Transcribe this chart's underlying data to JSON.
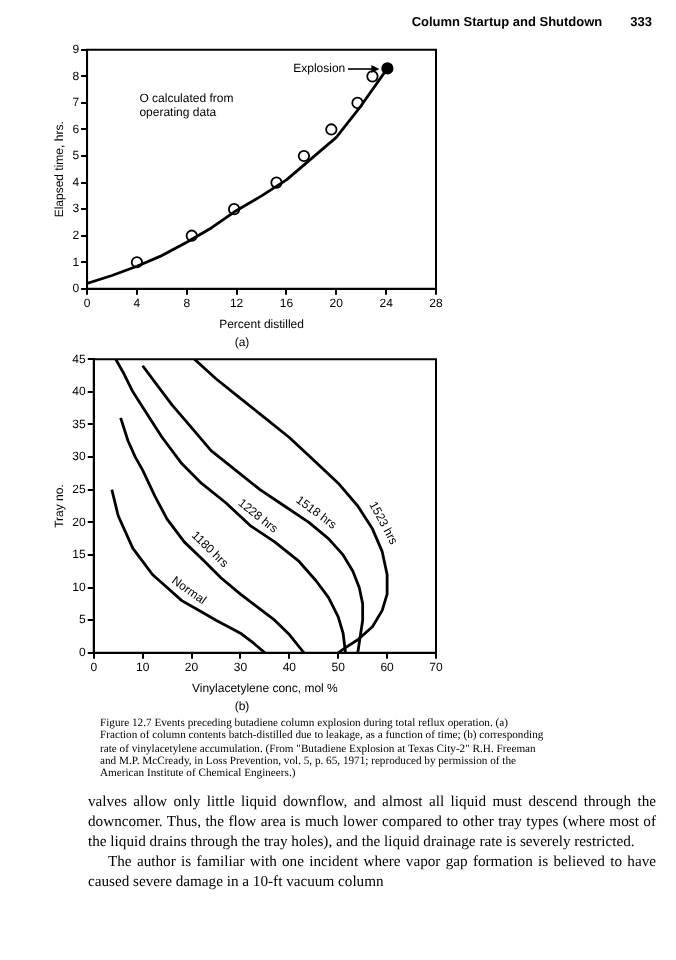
{
  "chart_data": [
    {
      "type": "line",
      "subtitle": "(a)",
      "xlabel": "Percent distilled",
      "ylabel": "Elapsed time, hrs.",
      "xlim": [
        0,
        28
      ],
      "xticks": [
        0,
        4,
        8,
        12,
        16,
        20,
        24,
        28
      ],
      "ylim": [
        0,
        9
      ],
      "yticks": [
        0,
        1,
        2,
        3,
        4,
        5,
        6,
        7,
        8,
        9
      ],
      "grid": false,
      "legend": false,
      "series": [
        {
          "type": "line",
          "color": "#000000",
          "marker": "none",
          "x": [
            0,
            2,
            4,
            6,
            8,
            10,
            12,
            14,
            16,
            18,
            20,
            22,
            24.1
          ],
          "values": [
            0.2,
            0.5,
            0.85,
            1.25,
            1.75,
            2.3,
            2.95,
            3.5,
            4.1,
            4.9,
            5.7,
            6.9,
            8.3
          ]
        },
        {
          "type": "scatter",
          "color": "#000000",
          "marker": "circle",
          "x": [
            4,
            8.4,
            11.8,
            15.2,
            17.4,
            19.6,
            21.7,
            22.9
          ],
          "values": [
            1,
            2,
            3,
            4,
            5,
            6,
            7,
            8
          ]
        },
        {
          "type": "scatter",
          "color": "#000000",
          "colors": [
            "#000000"
          ],
          "marker": "circle",
          "x": [
            24.1
          ],
          "values": [
            8.3
          ]
        }
      ],
      "annotations": [
        "Column Startup and Shutdown",
        "333",
        "O calculated from operating data",
        "Explosion"
      ]
    },
    {
      "type": "line",
      "subtitle": "(b)",
      "xlabel": "Vinylacetylene conc, mol %",
      "ylabel": "Tray no.",
      "xlim": [
        0,
        70
      ],
      "xticks": [
        0,
        10,
        20,
        30,
        40,
        50,
        60,
        70
      ],
      "ylim": [
        0,
        45
      ],
      "yticks": [
        0,
        5,
        10,
        15,
        20,
        25,
        30,
        35,
        40,
        45
      ],
      "grid": false,
      "legend": false,
      "series": [
        {
          "name": "Normal",
          "color": "#000000",
          "x": [
            3.7,
            5,
            6.5,
            8,
            10,
            12,
            15,
            18,
            22,
            25,
            28,
            30,
            32.5,
            35
          ],
          "values": [
            25,
            21,
            18.5,
            16,
            14,
            12,
            10,
            8,
            6.3,
            5,
            3.8,
            3,
            1.6,
            0
          ]
        },
        {
          "name": "1180 hrs",
          "color": "#000000",
          "x": [
            5.5,
            7,
            8.5,
            10,
            12.5,
            15,
            18.5,
            22,
            26,
            30,
            33.5,
            37,
            40,
            43
          ],
          "values": [
            36,
            32.5,
            30,
            28,
            24,
            20.5,
            17,
            14.5,
            11.5,
            9,
            7,
            5,
            2.8,
            0
          ]
        },
        {
          "name": "1228 hrs",
          "color": "#000000",
          "x": [
            4.5,
            6,
            8,
            11,
            14,
            18,
            22,
            27,
            32,
            37,
            42,
            45.5,
            48,
            50,
            51,
            51.5
          ],
          "values": [
            45,
            43,
            40,
            36.5,
            33,
            29,
            26,
            23,
            19.5,
            17,
            14,
            11,
            8.5,
            5.5,
            3,
            0
          ]
        },
        {
          "name": "1518 hrs",
          "color": "#000000",
          "x": [
            10,
            13,
            16,
            20,
            24,
            29,
            34,
            39,
            44,
            48,
            51,
            53,
            54.3,
            55,
            55,
            54.5,
            54
          ],
          "values": [
            44,
            41,
            38,
            34.5,
            31,
            28,
            25,
            22.5,
            20,
            17.5,
            15,
            12.5,
            10,
            7.5,
            5,
            2.5,
            0
          ]
        },
        {
          "name": "1523 hrs",
          "color": "#000000",
          "x": [
            20.6,
            25,
            30,
            35,
            40,
            45,
            50,
            54,
            57,
            59,
            60,
            60,
            59,
            57,
            54,
            51.5,
            50
          ],
          "values": [
            45,
            42,
            39,
            36,
            33,
            29.5,
            26,
            22.5,
            19,
            15.5,
            12,
            9,
            6.5,
            4,
            2,
            0.8,
            0
          ]
        }
      ],
      "annotations": [
        "Figure 12.7 Events preceding butadiene column explosion during total reflux operation. (a) Fraction of column contents batch-distilled due to leakage, as a function of time; (b) corresponding rate of vinylacetylene accumulation. (From \"Butadiene Explosion at Texas City-2\" R.H. Freeman and M.P. McCready, in Loss Prevention, vol. 5, p. 65, 1971; reproduced by permission of the American Institute of Chemical Engineers.)",
        "valves allow only little liquid downflow, and almost all liquid must descend through the downcomer. Thus, the flow area is much lower compared to other tray types (where most of the liquid drains through the tray holes), and the liquid drainage rate is severely restricted.",
        "The author is familiar with one incident where vapor gap formation is believed to have caused severe damage in a 10-ft vacuum column"
      ]
    }
  ]
}
